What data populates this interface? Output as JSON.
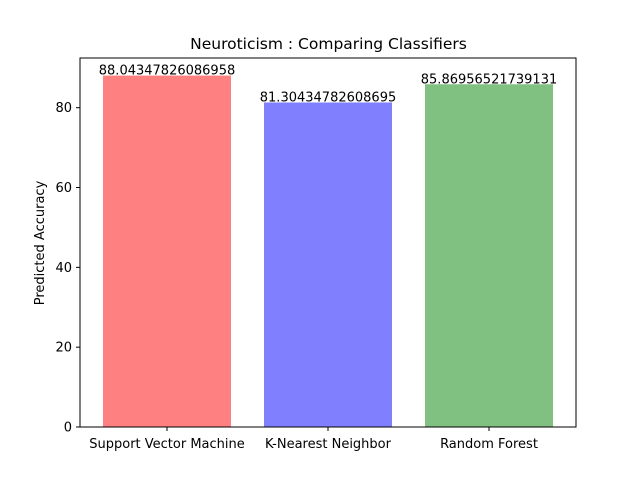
{
  "chart_data": {
    "type": "bar",
    "title": "Neuroticism : Comparing Classifiers",
    "xlabel": "",
    "ylabel": "Predicted Accuracy",
    "categories": [
      "Support Vector Machine",
      "K-Nearest Neighbor",
      "Random Forest"
    ],
    "values": [
      88.04347826086958,
      81.30434782608695,
      85.86956521739131
    ],
    "value_labels": [
      "88.04347826086958",
      "81.30434782608695",
      "85.86956521739131"
    ],
    "colors": [
      "#ff8080",
      "#8080ff",
      "#80c080"
    ],
    "ylim": [
      0,
      92.45
    ],
    "yticks": [
      0,
      20,
      40,
      60,
      80
    ],
    "ytick_labels": [
      "0",
      "20",
      "40",
      "60",
      "80"
    ],
    "grid": false,
    "legend": "none"
  }
}
